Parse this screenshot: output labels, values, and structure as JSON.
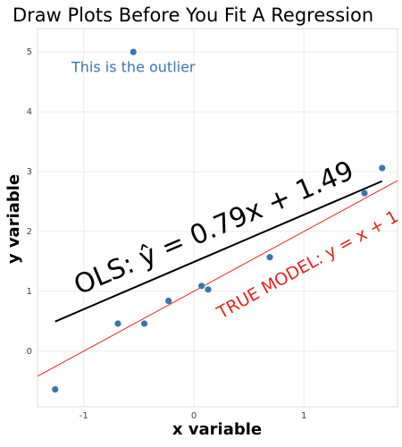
{
  "chart_data": {
    "type": "scatter",
    "title": "Draw Plots Before You Fit A Regression",
    "x_label": "x variable",
    "y_label": "y variable",
    "x": [
      -1.26,
      -0.69,
      -0.45,
      -0.23,
      0.07,
      0.13,
      0.69,
      1.55,
      1.71,
      -0.55
    ],
    "y": [
      -0.64,
      0.46,
      0.46,
      0.84,
      1.09,
      1.03,
      1.57,
      2.64,
      3.06,
      5.0
    ],
    "color": "#3b76ad",
    "xlim": [
      -1.42,
      1.85
    ],
    "ylim": [
      -0.93,
      5.39
    ],
    "xticks": [
      -1,
      0,
      1
    ],
    "yticks": [
      0,
      1,
      2,
      3,
      4,
      5
    ],
    "grid": true,
    "fit_lines": [
      {
        "label": "OLS: ŷ = 0.79x + 1.49",
        "slope": 0.79,
        "intercept": 1.49,
        "color": "#000000",
        "x_range": [
          -1.26,
          1.71
        ]
      },
      {
        "label": "TRUE MODEL: y = x + 1",
        "slope": 1,
        "intercept": 1,
        "color": "#e8231d",
        "x_range": [
          -1.42,
          1.85
        ]
      }
    ],
    "annotations": [
      {
        "text": "This is the outlier",
        "color": "#3b76ad"
      }
    ]
  }
}
